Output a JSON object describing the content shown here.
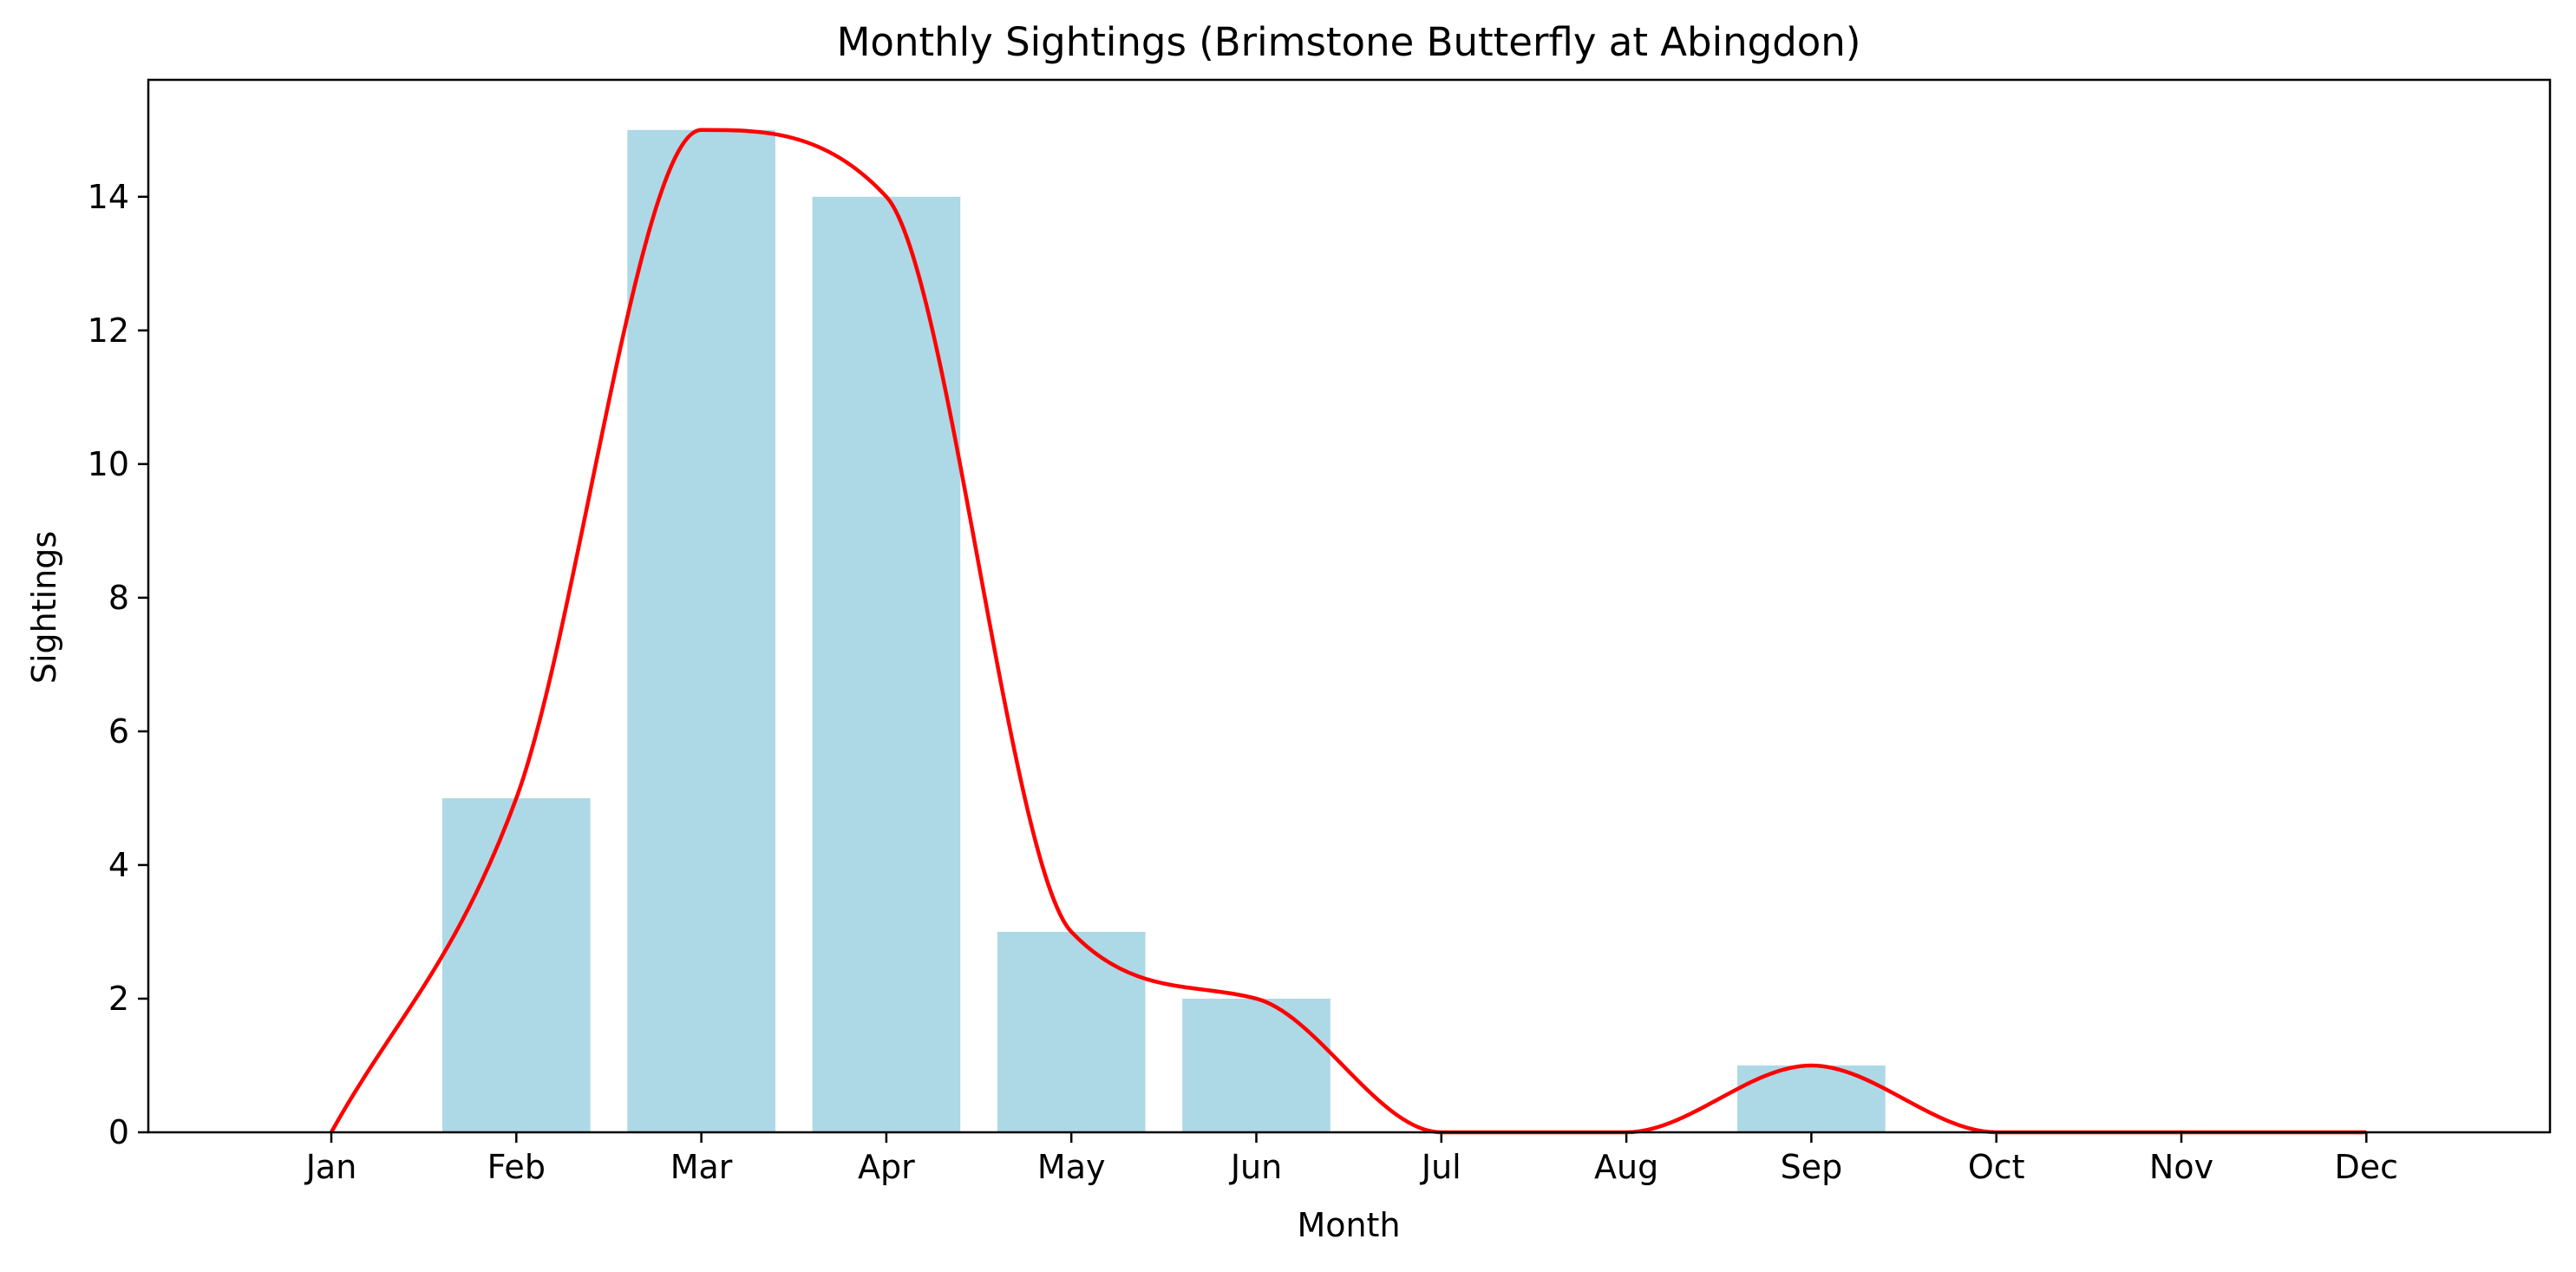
{
  "chart_data": {
    "type": "bar",
    "title": "Monthly Sightings (Brimstone Butterfly at Abingdon)",
    "xlabel": "Month",
    "ylabel": "Sightings",
    "categories": [
      "Jan",
      "Feb",
      "Mar",
      "Apr",
      "May",
      "Jun",
      "Jul",
      "Aug",
      "Sep",
      "Oct",
      "Nov",
      "Dec"
    ],
    "values": [
      0,
      5,
      15,
      14,
      3,
      2,
      0,
      0,
      1,
      0,
      0,
      0
    ],
    "ylim": [
      0,
      15.75
    ],
    "yticks": [
      0,
      2,
      4,
      6,
      8,
      10,
      12,
      14
    ],
    "bar_color": "#add8e6",
    "line_color": "#ff0000",
    "overlay": "smoothed-line",
    "grid": false,
    "legend": "none"
  }
}
